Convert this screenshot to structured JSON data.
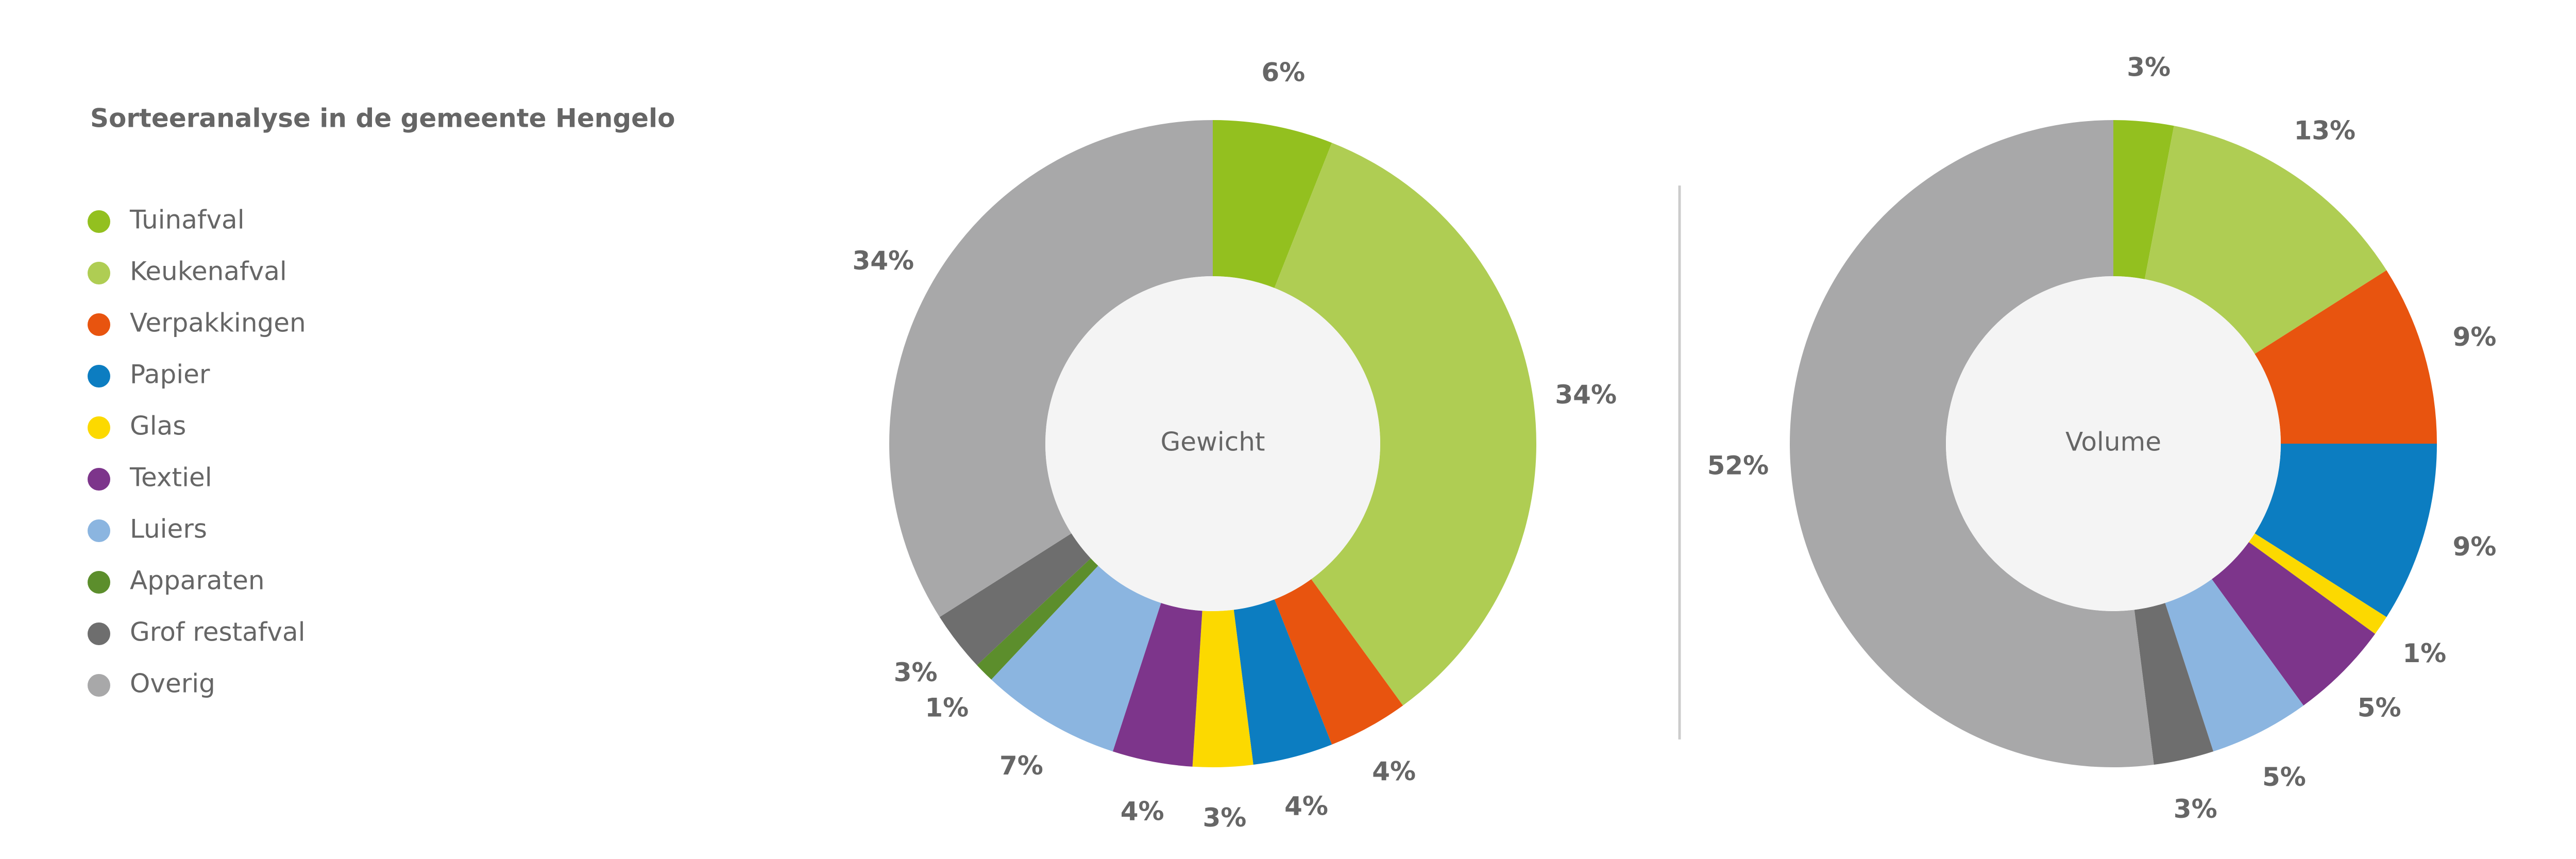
{
  "title": "Sorteeranalyse in de gemeente Hengelo",
  "chart_data": [
    {
      "type": "pie",
      "center_label": "Gewicht",
      "categories": [
        "Tuinafval",
        "Keukenafval",
        "Verpakkingen",
        "Papier",
        "Glas",
        "Textiel",
        "Luiers",
        "Apparaten",
        "Grof restafval",
        "Overig"
      ],
      "colors": [
        "#93c01f",
        "#afcd53",
        "#e8540f",
        "#0c7dc1",
        "#fcd900",
        "#7d358b",
        "#8bb5e0",
        "#5c8e2c",
        "#6e6e6e",
        "#a8a8a9"
      ],
      "values": [
        6,
        34,
        4,
        4,
        3,
        4,
        7,
        1,
        3,
        34
      ],
      "value_labels": [
        "6%",
        "34%",
        "4%",
        "4%",
        "3%",
        "4%",
        "7%",
        "1%",
        "3%",
        "34%"
      ]
    },
    {
      "type": "pie",
      "center_label": "Volume",
      "values": [
        3,
        13,
        9,
        9,
        1,
        5,
        5,
        null,
        3,
        52
      ],
      "value_labels": [
        "3%",
        "13%",
        "9%",
        "9%",
        "1%",
        "5%",
        "5%",
        null,
        "3%",
        "52%"
      ]
    }
  ]
}
